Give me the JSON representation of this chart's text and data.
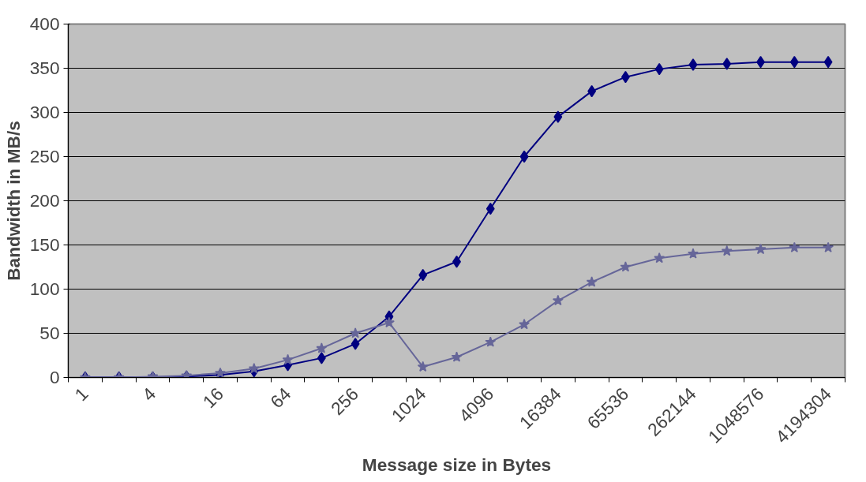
{
  "chart_data": {
    "type": "line",
    "xlabel": "Message size in Bytes",
    "ylabel": "Bandwidth in MB/s",
    "categories": [
      "1",
      null,
      "4",
      null,
      "16",
      null,
      "64",
      null,
      "256",
      null,
      "1024",
      null,
      "4096",
      null,
      "16384",
      null,
      "65536",
      null,
      "262144",
      null,
      "1048576",
      null,
      "4194304"
    ],
    "ylim": [
      0,
      400
    ],
    "yticks": [
      0,
      50,
      100,
      150,
      200,
      250,
      300,
      350,
      400
    ],
    "grid": "y",
    "series": [
      {
        "color": "#000080",
        "marker": "diamond",
        "values": [
          0,
          0,
          0,
          1,
          3,
          7,
          14,
          22,
          38,
          69,
          116,
          131,
          191,
          250,
          295,
          324,
          340,
          349,
          354,
          355,
          357,
          357,
          357
        ]
      },
      {
        "color": "#666699",
        "marker": "star",
        "values": [
          0,
          0,
          1,
          2,
          5,
          10,
          20,
          33,
          50,
          62,
          12,
          23,
          40,
          60,
          87,
          108,
          125,
          135,
          140,
          143,
          145,
          147,
          147
        ]
      }
    ]
  }
}
